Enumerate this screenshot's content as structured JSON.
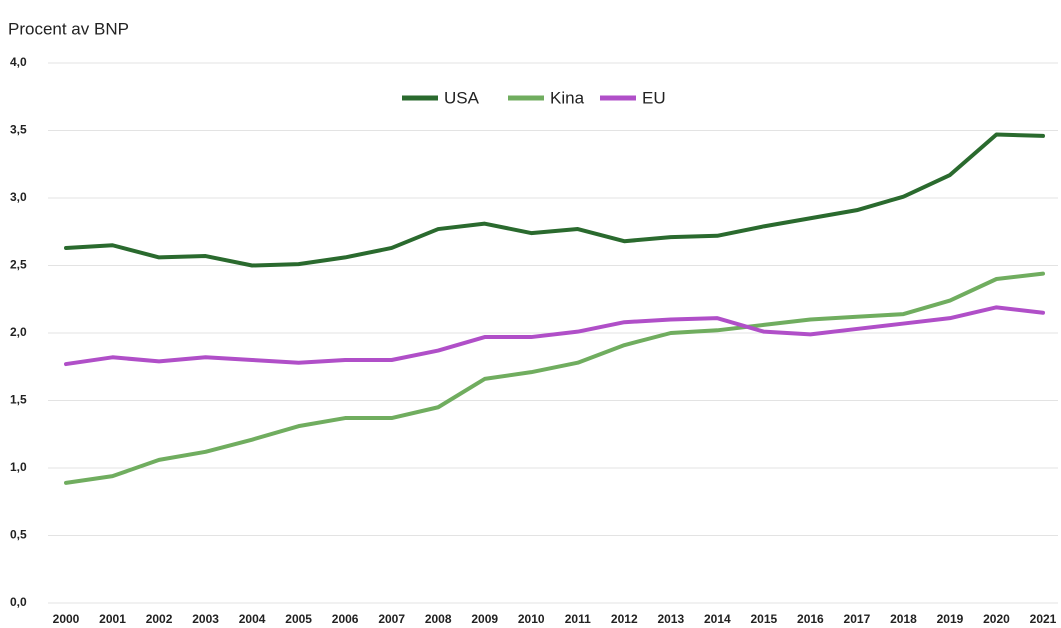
{
  "chart_data": {
    "type": "line",
    "y_label": "Procent av BNP",
    "categories": [
      "2000",
      "2001",
      "2002",
      "2003",
      "2004",
      "2005",
      "2006",
      "2007",
      "2008",
      "2009",
      "2010",
      "2011",
      "2012",
      "2013",
      "2014",
      "2015",
      "2016",
      "2017",
      "2018",
      "2019",
      "2020",
      "2021"
    ],
    "series": [
      {
        "name": "USA",
        "color": "#2a6a2e",
        "values": [
          2.63,
          2.65,
          2.56,
          2.57,
          2.5,
          2.51,
          2.56,
          2.63,
          2.77,
          2.81,
          2.74,
          2.77,
          2.68,
          2.71,
          2.72,
          2.79,
          2.85,
          2.91,
          3.01,
          3.17,
          3.47,
          3.46
        ]
      },
      {
        "name": "Kina",
        "color": "#70ad5f",
        "values": [
          0.89,
          0.94,
          1.06,
          1.12,
          1.21,
          1.31,
          1.37,
          1.37,
          1.45,
          1.66,
          1.71,
          1.78,
          1.91,
          2.0,
          2.02,
          2.06,
          2.1,
          2.12,
          2.14,
          2.24,
          2.4,
          2.44
        ]
      },
      {
        "name": "EU",
        "color": "#b04fc8",
        "values": [
          1.77,
          1.82,
          1.79,
          1.82,
          1.8,
          1.78,
          1.8,
          1.8,
          1.87,
          1.97,
          1.97,
          2.01,
          2.08,
          2.1,
          2.11,
          2.01,
          1.99,
          2.03,
          2.07,
          2.11,
          2.19,
          2.15
        ]
      }
    ],
    "ylim": [
      0,
      4
    ],
    "yticks": [
      {
        "value": 0,
        "label": "0,0"
      },
      {
        "value": 0.5,
        "label": "0,5"
      },
      {
        "value": 1,
        "label": "1,0"
      },
      {
        "value": 1.5,
        "label": "1,5"
      },
      {
        "value": 2,
        "label": "2,0"
      },
      {
        "value": 2.5,
        "label": "2,5"
      },
      {
        "value": 3,
        "label": "3,0"
      },
      {
        "value": 3.5,
        "label": "3,5"
      },
      {
        "value": 4,
        "label": "4,0"
      }
    ],
    "grid": true,
    "legend": "top"
  }
}
